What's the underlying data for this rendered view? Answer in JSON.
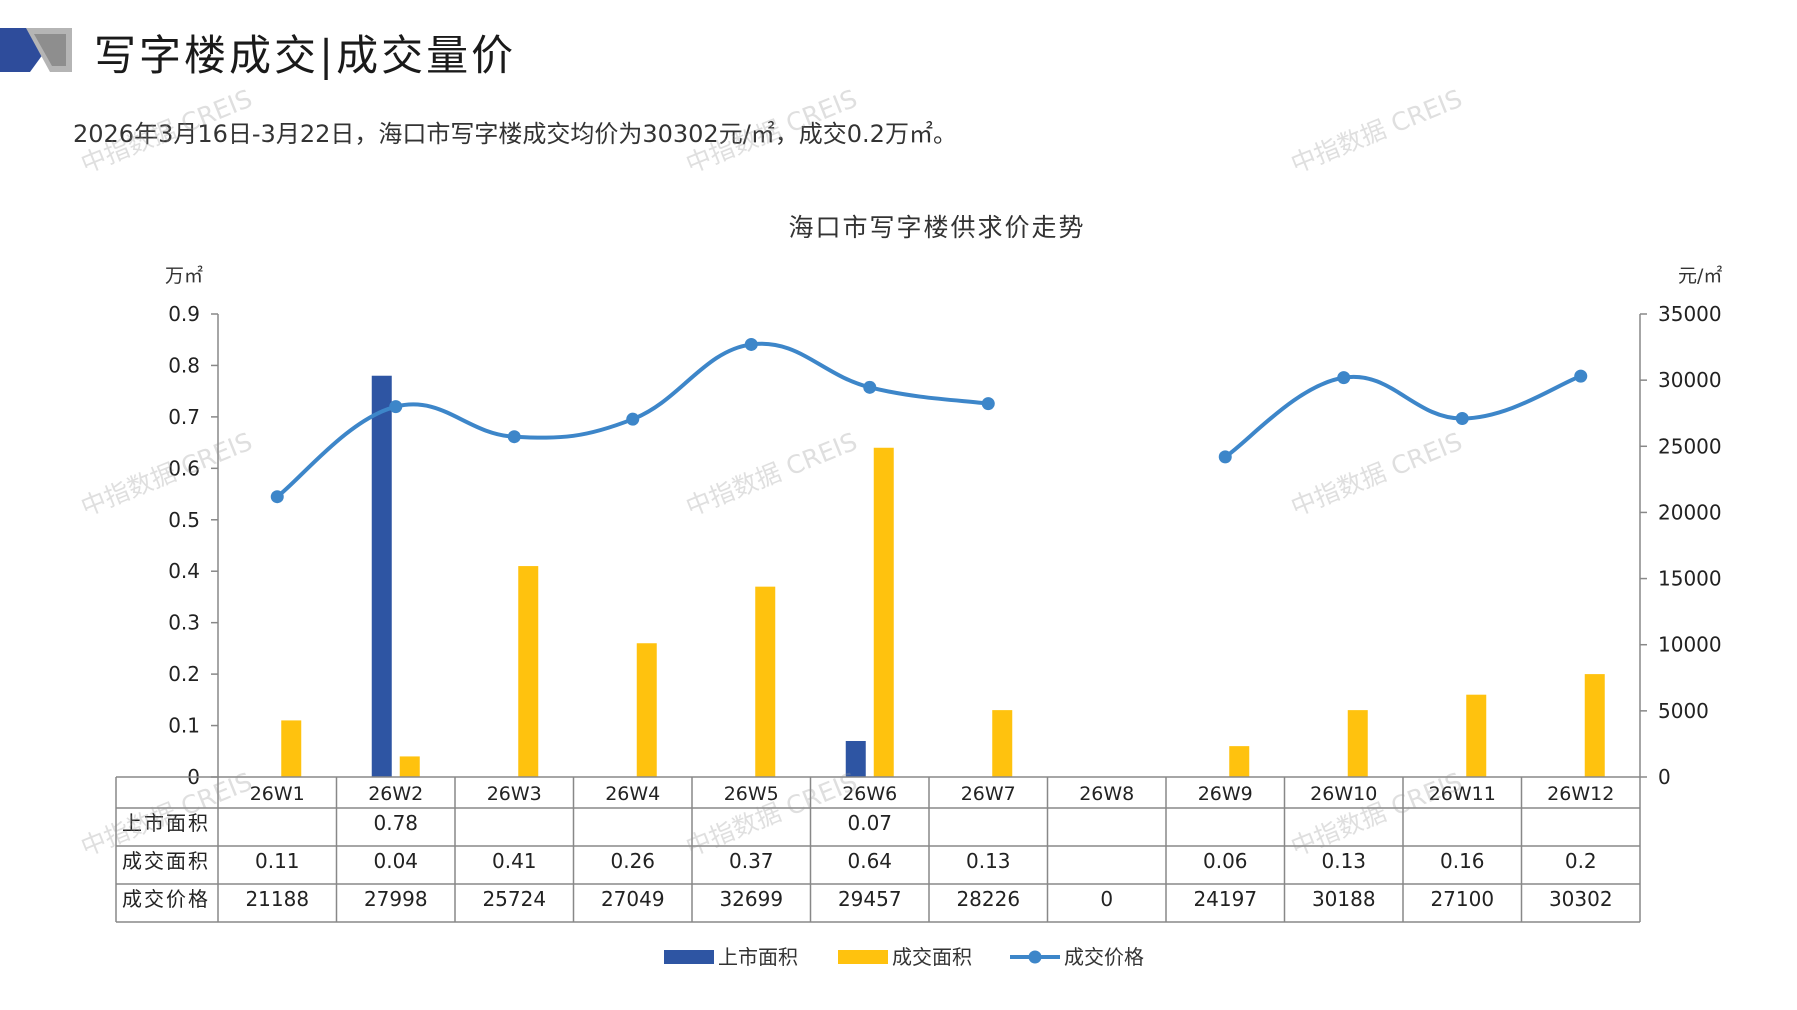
{
  "header": {
    "title": "写字楼成交|成交量价",
    "summary": "2026年3月16日-3月22日，海口市写字楼成交均价为30302元/㎡，成交0.2万㎡。"
  },
  "watermark": {
    "text": "中指数据 CREIS"
  },
  "colors": {
    "supply": "#2E55A3",
    "deal_area": "#FFC20E",
    "price": "#3D86C9",
    "logo_dark": "#2E4C9B",
    "logo_gray": "#A9A9A9"
  },
  "chart_data": {
    "type": "bar+line",
    "title": "海口市写字楼供求价走势",
    "left_unit": "万㎡",
    "right_unit": "元/㎡",
    "categories": [
      "26W1",
      "26W2",
      "26W3",
      "26W4",
      "26W5",
      "26W6",
      "26W7",
      "26W8",
      "26W9",
      "26W10",
      "26W11",
      "26W12"
    ],
    "left_ylim": [
      0,
      0.9
    ],
    "left_ticks": [
      "0",
      "0.1",
      "0.2",
      "0.3",
      "0.4",
      "0.5",
      "0.6",
      "0.7",
      "0.8",
      "0.9"
    ],
    "right_ylim": [
      0,
      35000
    ],
    "right_ticks": [
      "0",
      "5000",
      "10000",
      "15000",
      "20000",
      "25000",
      "30000",
      "35000"
    ],
    "series": [
      {
        "name": "上市面积",
        "type": "bar",
        "axis": "left",
        "values": [
          null,
          0.78,
          null,
          null,
          null,
          0.07,
          null,
          null,
          null,
          null,
          null,
          null
        ],
        "labels": [
          "",
          "0.78",
          "",
          "",
          "",
          "0.07",
          "",
          "",
          "",
          "",
          "",
          ""
        ]
      },
      {
        "name": "成交面积",
        "type": "bar",
        "axis": "left",
        "values": [
          0.11,
          0.04,
          0.41,
          0.26,
          0.37,
          0.64,
          0.13,
          null,
          0.06,
          0.13,
          0.16,
          0.2
        ],
        "labels": [
          "0.11",
          "0.04",
          "0.41",
          "0.26",
          "0.37",
          "0.64",
          "0.13",
          "",
          "0.06",
          "0.13",
          "0.16",
          "0.2"
        ]
      },
      {
        "name": "成交价格",
        "type": "line",
        "axis": "right",
        "values": [
          21188,
          27998,
          25724,
          27049,
          32699,
          29457,
          28226,
          0,
          24197,
          30188,
          27100,
          30302
        ],
        "labels": [
          "21188",
          "27998",
          "25724",
          "27049",
          "32699",
          "29457",
          "28226",
          "0",
          "24197",
          "30188",
          "27100",
          "30302"
        ]
      }
    ],
    "legend_position": "bottom",
    "data_table": true
  }
}
